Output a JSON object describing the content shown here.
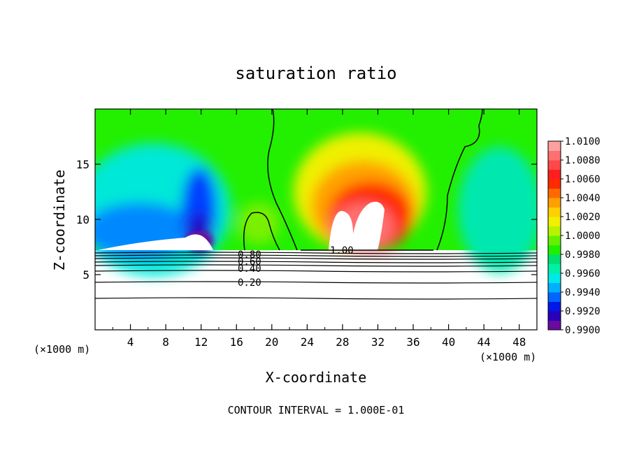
{
  "chart_data": {
    "type": "heatmap",
    "title": "saturation ratio",
    "xlabel": "X-coordinate",
    "ylabel": "Z-coordinate",
    "x_unit_left": "(×1000 m)",
    "x_unit_right": "(×1000 m)",
    "xlim": [
      0,
      50
    ],
    "ylim": [
      0,
      20
    ],
    "xticks": [
      "4",
      "8",
      "12",
      "16",
      "20",
      "24",
      "28",
      "32",
      "36",
      "40",
      "44",
      "48"
    ],
    "yticks": [
      "5",
      "10",
      "15"
    ],
    "colorbar_ticks": [
      "1.0100",
      "1.0080",
      "1.0060",
      "1.0040",
      "1.0020",
      "1.0000",
      "0.9980",
      "0.9960",
      "0.9940",
      "0.9920",
      "0.9900"
    ],
    "colorbar_range": [
      0.99,
      1.01
    ],
    "contour_labels": [
      "1.00",
      "0.80",
      "0.60",
      "0.40",
      "0.20"
    ],
    "footer": "CONTOUR INTERVAL = 1.000E-01"
  },
  "colors": {
    "colorbar": [
      "#6a0aa0",
      "#2a00b8",
      "#0018e8",
      "#0066ff",
      "#00b0ff",
      "#00e8e8",
      "#00f0a8",
      "#00e070",
      "#1ef000",
      "#66f000",
      "#b8f200",
      "#f0f000",
      "#ffd000",
      "#ffa000",
      "#ff6a00",
      "#ff2a00",
      "#ff1e1e",
      "#ff4848",
      "#ff7070",
      "#ffa0a0"
    ]
  }
}
